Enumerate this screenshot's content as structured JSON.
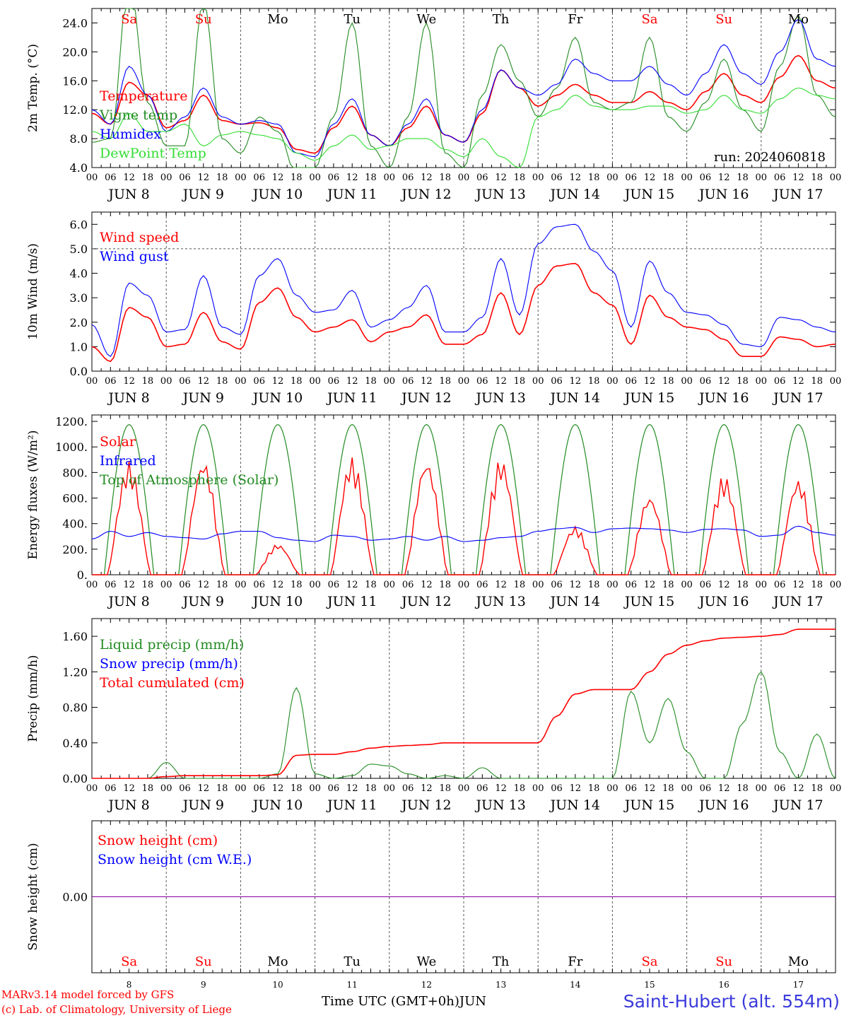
{
  "footer": {
    "model": "MARv3.14 model forced by GFS",
    "lab": "(c) Lab. of Climatology, University of Liege",
    "time_label": "Time UTC (GMT+0h)",
    "month": "JUN",
    "station": "Saint-Hubert (alt. 554m)"
  },
  "hour_ticks": [
    "00",
    "06",
    "12",
    "18"
  ],
  "last_tick": "00",
  "days": [
    {
      "wd": "Sa",
      "num": "8",
      "date": "JUN  8",
      "weekend": true
    },
    {
      "wd": "Su",
      "num": "9",
      "date": "JUN  9",
      "weekend": true
    },
    {
      "wd": "Mo",
      "num": "10",
      "date": "JUN 10",
      "weekend": false
    },
    {
      "wd": "Tu",
      "num": "11",
      "date": "JUN 11",
      "weekend": false
    },
    {
      "wd": "We",
      "num": "12",
      "date": "JUN 12",
      "weekend": false
    },
    {
      "wd": "Th",
      "num": "13",
      "date": "JUN 13",
      "weekend": false
    },
    {
      "wd": "Fr",
      "num": "14",
      "date": "JUN 14",
      "weekend": false
    },
    {
      "wd": "Sa",
      "num": "15",
      "date": "JUN 15",
      "weekend": true
    },
    {
      "wd": "Su",
      "num": "16",
      "date": "JUN 16",
      "weekend": true
    },
    {
      "wd": "Mo",
      "num": "17",
      "date": "JUN 17",
      "weekend": false
    }
  ],
  "colors": {
    "red": "#ff0000",
    "green": "#228b22",
    "blue": "#0000ff",
    "lightgreen": "#33dd33",
    "purple": "#8000a0",
    "weekend": "#ff0000",
    "dash": "#555555"
  },
  "chart_data": [
    {
      "type": "line",
      "ylabel": "2m Temp. (°C)",
      "ylim": [
        4,
        26
      ],
      "yticks": [
        "4.0",
        "8.0",
        "12.0",
        "16.0",
        "20.0",
        "24.0"
      ],
      "annotation": "run: 2024060818",
      "legend": [
        {
          "name": "Temperature",
          "color": "red"
        },
        {
          "name": "Vigne temp",
          "color": "green"
        },
        {
          "name": "Humidex",
          "color": "blue"
        },
        {
          "name": "DewPoint Temp",
          "color": "lightgreen"
        }
      ],
      "x_hours": [
        0,
        6,
        12,
        18,
        24,
        30,
        36,
        42,
        48,
        54,
        60,
        66,
        72,
        78,
        84,
        90,
        96,
        102,
        108,
        114,
        120,
        126,
        132,
        138,
        144,
        150,
        156,
        162,
        168,
        174,
        180,
        186,
        192,
        198,
        204,
        210,
        216,
        222,
        228,
        234,
        240
      ],
      "series": [
        {
          "name": "Temperature",
          "color": "red",
          "values": [
            11.5,
            10,
            15.8,
            14,
            9.5,
            10.5,
            14,
            10.5,
            10,
            10.2,
            9.5,
            6.5,
            6,
            9.5,
            12.5,
            8.5,
            7,
            9.5,
            12.5,
            8.5,
            7.5,
            11.5,
            17.5,
            15,
            12.5,
            14,
            15.5,
            14,
            13,
            13,
            14.5,
            13,
            12,
            14.5,
            17,
            14,
            13,
            16.5,
            19.5,
            16,
            15
          ]
        },
        {
          "name": "Vigne temp",
          "color": "green",
          "values": [
            7.5,
            8,
            30,
            13,
            7,
            7,
            27,
            8,
            6,
            11,
            9,
            3,
            4,
            11,
            24,
            7,
            4,
            11,
            24,
            6,
            4,
            14,
            21,
            16,
            11,
            15,
            22,
            13,
            12,
            13,
            22,
            11,
            9,
            13,
            19,
            12,
            9,
            18,
            25,
            14,
            11
          ]
        },
        {
          "name": "Humidex",
          "color": "blue",
          "values": [
            12,
            10,
            18,
            14,
            9,
            11,
            15,
            11,
            10,
            10.5,
            10,
            6,
            5.5,
            10,
            13.5,
            8.5,
            7,
            10,
            13.5,
            8.5,
            7.5,
            12,
            17.5,
            15,
            14,
            15.5,
            19,
            17,
            16,
            16,
            18,
            15.5,
            14,
            17,
            21,
            17,
            15.5,
            20,
            24.5,
            19,
            18
          ]
        },
        {
          "name": "DewPoint Temp",
          "color": "lightgreen",
          "values": [
            9,
            8,
            11.5,
            9,
            9,
            10,
            7,
            8.5,
            9,
            8.5,
            8,
            6,
            5,
            7,
            8.5,
            6.5,
            7,
            8,
            8,
            6.5,
            5.5,
            8,
            5.5,
            4,
            11,
            12,
            14,
            12.5,
            12,
            12,
            12.5,
            12.5,
            11.5,
            12,
            14,
            12,
            11.5,
            13.5,
            15,
            14,
            13.5
          ]
        }
      ]
    },
    {
      "type": "line",
      "ylabel": "10m Wind (m/s)",
      "ylim": [
        0,
        6.5
      ],
      "yticks": [
        "0.0",
        "1.0",
        "2.0",
        "3.0",
        "4.0",
        "5.0",
        "6.0"
      ],
      "reference_y": 5,
      "legend": [
        {
          "name": "Wind speed",
          "color": "red"
        },
        {
          "name": "Wind gust",
          "color": "blue"
        }
      ],
      "x_hours": [
        0,
        6,
        12,
        18,
        24,
        30,
        36,
        42,
        48,
        54,
        60,
        66,
        72,
        78,
        84,
        90,
        96,
        102,
        108,
        114,
        120,
        126,
        132,
        138,
        144,
        150,
        156,
        162,
        168,
        174,
        180,
        186,
        192,
        198,
        204,
        210,
        216,
        222,
        228,
        234,
        240
      ],
      "series": [
        {
          "name": "Wind speed",
          "color": "red",
          "values": [
            1,
            0.4,
            2.6,
            2.2,
            1,
            1.1,
            2.4,
            1.2,
            0.9,
            2.8,
            3.4,
            2.2,
            1.6,
            1.8,
            2.1,
            1.2,
            1.6,
            1.8,
            2.3,
            1.1,
            1.1,
            1.5,
            3.2,
            1.5,
            3.5,
            4.3,
            4.4,
            3.2,
            2.7,
            1.1,
            3.1,
            2.2,
            1.8,
            1.7,
            1.3,
            0.6,
            0.6,
            1.4,
            1.3,
            1,
            1.1
          ]
        },
        {
          "name": "Wind gust",
          "color": "blue",
          "values": [
            1.9,
            0.6,
            3.6,
            3.1,
            1.6,
            1.7,
            3.9,
            1.8,
            1.5,
            3.9,
            4.6,
            3.1,
            2.4,
            2.5,
            3.3,
            1.8,
            2.1,
            2.6,
            3.5,
            1.6,
            1.6,
            2.2,
            4.6,
            2.3,
            5.2,
            5.9,
            6,
            4.9,
            4.1,
            1.8,
            4.5,
            3.2,
            2.4,
            2.3,
            1.9,
            1.1,
            1,
            2.2,
            2.1,
            1.8,
            1.6
          ]
        }
      ]
    },
    {
      "type": "line",
      "ylabel": "Energy fluxes (W/m²)",
      "ylim": [
        0,
        1250
      ],
      "yticks": [
        "0.",
        "200.",
        "400.",
        "600.",
        "800.",
        "1000.",
        "1200."
      ],
      "legend": [
        {
          "name": "Solar",
          "color": "red"
        },
        {
          "name": "Infrared",
          "color": "blue"
        },
        {
          "name": "Top of Atmosphere (Solar)",
          "color": "green"
        }
      ],
      "toa_peak": 1175,
      "solar_peaks": [
        890,
        900,
        240,
        920,
        900,
        910,
        380,
        620,
        780,
        750
      ],
      "x_hours": [
        0,
        6,
        12,
        18,
        24,
        30,
        36,
        42,
        48,
        54,
        60,
        66,
        72,
        78,
        84,
        90,
        96,
        102,
        108,
        114,
        120,
        126,
        132,
        138,
        144,
        150,
        156,
        162,
        168,
        174,
        180,
        186,
        192,
        198,
        204,
        210,
        216,
        222,
        228,
        234,
        240
      ],
      "series": [
        {
          "name": "Infrared",
          "color": "blue",
          "values": [
            280,
            340,
            300,
            330,
            300,
            290,
            280,
            320,
            340,
            340,
            290,
            270,
            260,
            310,
            300,
            270,
            280,
            300,
            270,
            300,
            260,
            270,
            290,
            300,
            340,
            360,
            370,
            330,
            360,
            365,
            360,
            350,
            330,
            355,
            360,
            350,
            300,
            310,
            380,
            330,
            310
          ]
        }
      ]
    },
    {
      "type": "line",
      "ylabel": "Precip (mm/h)",
      "ylim": [
        0,
        1.8
      ],
      "yticks": [
        "0.00",
        "0.40",
        "0.80",
        "1.20",
        "1.60"
      ],
      "legend": [
        {
          "name": "Liquid precip (mm/h)",
          "color": "green"
        },
        {
          "name": "Snow precip (mm/h)",
          "color": "blue"
        },
        {
          "name": "Total cumulated (cm)",
          "color": "red"
        }
      ],
      "x_hours": [
        0,
        6,
        12,
        18,
        24,
        30,
        36,
        42,
        48,
        54,
        60,
        66,
        72,
        78,
        84,
        90,
        96,
        102,
        108,
        114,
        120,
        126,
        132,
        138,
        144,
        150,
        156,
        162,
        168,
        174,
        180,
        186,
        192,
        198,
        204,
        210,
        216,
        222,
        228,
        234,
        240
      ],
      "series": [
        {
          "name": "Liquid precip (mm/h)",
          "color": "green",
          "values": [
            0,
            0,
            0,
            0,
            0.18,
            0,
            0,
            0,
            0,
            0,
            0.05,
            1.02,
            0.05,
            0,
            0.03,
            0.16,
            0.14,
            0.05,
            0,
            0.03,
            0,
            0.12,
            0,
            0,
            0,
            0,
            0,
            0,
            0,
            0.98,
            0.4,
            0.9,
            0.3,
            0,
            0,
            0.62,
            1.2,
            0.3,
            0,
            0.5,
            0
          ]
        },
        {
          "name": "Total cumulated (cm)",
          "color": "red",
          "values": [
            0,
            0,
            0,
            0,
            0.02,
            0.03,
            0.03,
            0.03,
            0.03,
            0.03,
            0.04,
            0.26,
            0.27,
            0.27,
            0.3,
            0.34,
            0.36,
            0.37,
            0.38,
            0.4,
            0.4,
            0.4,
            0.4,
            0.4,
            0.4,
            0.7,
            0.95,
            1,
            1,
            1,
            1.2,
            1.4,
            1.5,
            1.55,
            1.58,
            1.59,
            1.6,
            1.62,
            1.68,
            1.68,
            1.68
          ]
        }
      ]
    },
    {
      "type": "line",
      "ylabel": "Snow height (cm)",
      "ylim": [
        -1,
        1
      ],
      "yticks": [
        "0.00"
      ],
      "legend": [
        {
          "name": "Snow height (cm)",
          "color": "red"
        },
        {
          "name": "Snow height (cm W.E.)",
          "color": "blue"
        }
      ],
      "x_hours": [
        0,
        240
      ],
      "series": [
        {
          "name": "Snow height (cm)",
          "color": "purple",
          "values": [
            0,
            0
          ]
        }
      ]
    }
  ]
}
